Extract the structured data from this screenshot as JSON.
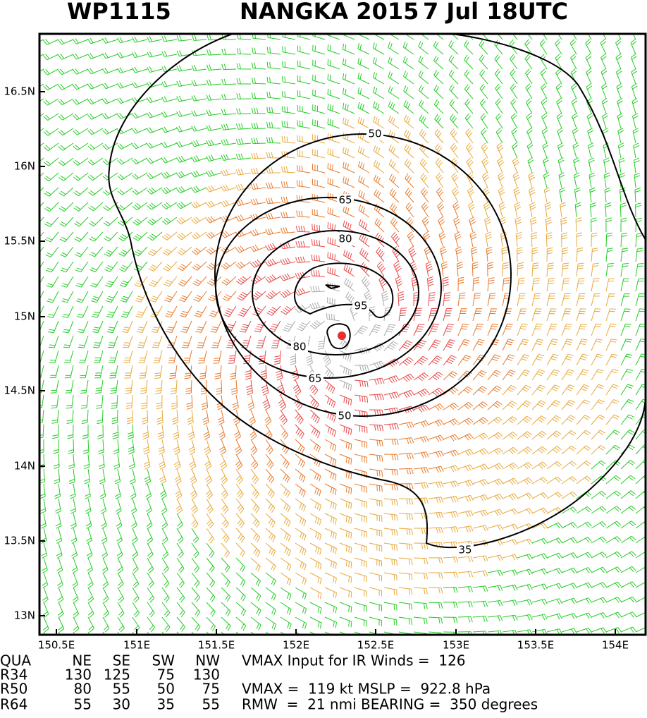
{
  "title": {
    "id": "WP1115",
    "storm": "NANGKA 2015",
    "time": "7 Jul 18UTC"
  },
  "lat_labels": [
    "16.5N",
    "16N",
    "15.5N",
    "15N",
    "14.5N",
    "14N",
    "13.5N",
    "13N"
  ],
  "lon_labels": [
    "150.5E",
    "151E",
    "151.5E",
    "152E",
    "152.5E",
    "153E",
    "153.5E",
    "154E"
  ],
  "contour_labels": [
    "50",
    "65",
    "80",
    "95",
    "80",
    "65",
    "50",
    "35"
  ],
  "table": {
    "header": [
      "QUA",
      "NE",
      "SE",
      "SW",
      "NW"
    ],
    "rows": [
      [
        "R34",
        "130",
        "125",
        "75",
        "130"
      ],
      [
        "R50",
        "80",
        "55",
        "50",
        "75"
      ],
      [
        "R64",
        "55",
        "30",
        "35",
        "55"
      ]
    ]
  },
  "notes": [
    "VMAX Input for IR Winds =  126",
    "VMAX =  119 kt MSLP =  922.8 hPa",
    "RMW  =  21 nmi BEARING =  350 degrees"
  ]
}
